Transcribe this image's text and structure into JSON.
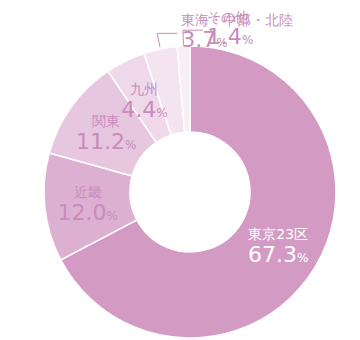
{
  "chart_data": {
    "type": "donut",
    "categories": [
      "東京23区",
      "近畿",
      "関東",
      "九州",
      "東海・中部・北陸",
      "その他"
    ],
    "values": [
      67.3,
      12.0,
      11.2,
      4.4,
      3.7,
      1.4
    ],
    "value_labels": [
      "67.3%",
      "12.0%",
      "11.2%",
      "4.4%",
      "3.7%",
      "1.4%"
    ],
    "colors": [
      "#d39bc4",
      "#ddb0d2",
      "#e7c6df",
      "#efd8ea",
      "#f4e4f0",
      "#f8eef5"
    ],
    "data_labels": true
  }
}
